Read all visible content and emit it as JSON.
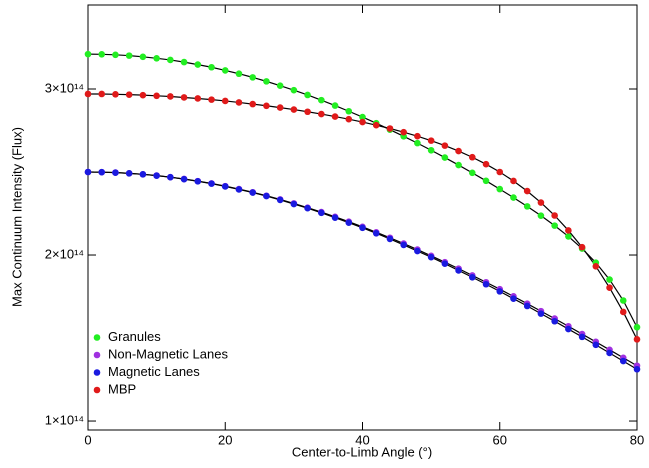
{
  "chart_data": {
    "type": "scatter",
    "xlabel": "Center-to-Limb Angle (°)",
    "ylabel": "Max Continuum Intensity (Flux)",
    "x": [
      0,
      2,
      4,
      6,
      8,
      10,
      12,
      14,
      16,
      18,
      20,
      22,
      24,
      26,
      28,
      30,
      32,
      34,
      36,
      38,
      40,
      42,
      44,
      46,
      48,
      50,
      52,
      54,
      56,
      58,
      60,
      62,
      64,
      66,
      68,
      70,
      72,
      74,
      76,
      78,
      80
    ],
    "xlim": [
      0,
      80
    ],
    "xticks": [
      0,
      20,
      40,
      60,
      80
    ],
    "ylim": [
      94600000000000.0,
      350600000000000.0
    ],
    "yticks": [
      {
        "value": 100000000000000.0,
        "label": "1×10¹⁴"
      },
      {
        "value": 200000000000000.0,
        "label": "2×10¹⁴"
      },
      {
        "value": 300000000000000.0,
        "label": "3×10¹⁴"
      }
    ],
    "fit_line_color": "#000000",
    "legend": "lower left",
    "series": [
      {
        "name": "Granules",
        "color": "#22ee22",
        "values": [
          321000000000000.0,
          320900000000000.0,
          320600000000000.0,
          320100000000000.0,
          319400000000000.0,
          318500000000000.0,
          317500000000000.0,
          316200000000000.0,
          314700000000000.0,
          313100000000000.0,
          311200000000000.0,
          309200000000000.0,
          307000000000000.0,
          304600000000000.0,
          302000000000000.0,
          299300000000000.0,
          296400000000000.0,
          293300000000000.0,
          290000000000000.0,
          286600000000000.0,
          283100000000000.0,
          279400000000000.0,
          275500000000000.0,
          271500000000000.0,
          267400000000000.0,
          263100000000000.0,
          258700000000000.0,
          254200000000000.0,
          249500000000000.0,
          244700000000000.0,
          239700000000000.0,
          234600000000000.0,
          229300000000000.0,
          223700000000000.0,
          217700000000000.0,
          211200000000000.0,
          203900000000000.0,
          195400000000000.0,
          185200000000000.0,
          172600000000000.0,
          156500000000000.0
        ]
      },
      {
        "name": "Non-Magnetic Lanes",
        "color": "#a030e0",
        "values": [
          250000000000000.0,
          249900000000000.0,
          249700000000000.0,
          249200000000000.0,
          248600000000000.0,
          247900000000000.0,
          246900000000000.0,
          245800000000000.0,
          244500000000000.0,
          243100000000000.0,
          241500000000000.0,
          239700000000000.0,
          237800000000000.0,
          235700000000000.0,
          233500000000000.0,
          231100000000000.0,
          228500000000000.0,
          225900000000000.0,
          223000000000000.0,
          220100000000000.0,
          217000000000000.0,
          213700000000000.0,
          210400000000000.0,
          206900000000000.0,
          203300000000000.0,
          199500000000000.0,
          195700000000000.0,
          191800000000000.0,
          187700000000000.0,
          183600000000000.0,
          179400000000000.0,
          175100000000000.0,
          170700000000000.0,
          166200000000000.0,
          161700000000000.0,
          157100000000000.0,
          152400000000000.0,
          147700000000000.0,
          142900000000000.0,
          138100000000000.0,
          133300000000000.0
        ]
      },
      {
        "name": "Magnetic Lanes",
        "color": "#1a1ae0",
        "values": [
          250000000000000.0,
          249900000000000.0,
          249600000000000.0,
          249200000000000.0,
          248600000000000.0,
          247800000000000.0,
          246900000000000.0,
          245700000000000.0,
          244400000000000.0,
          243000000000000.0,
          241300000000000.0,
          239500000000000.0,
          237600000000000.0,
          235500000000000.0,
          233200000000000.0,
          230700000000000.0,
          228200000000000.0,
          225400000000000.0,
          222500000000000.0,
          219500000000000.0,
          216400000000000.0,
          213100000000000.0,
          209700000000000.0,
          206100000000000.0,
          202400000000000.0,
          198700000000000.0,
          194800000000000.0,
          190700000000000.0,
          186600000000000.0,
          182400000000000.0,
          178100000000000.0,
          173700000000000.0,
          169300000000000.0,
          164700000000000.0,
          160100000000000.0,
          155400000000000.0,
          150700000000000.0,
          145900000000000.0,
          141000000000000.0,
          136100000000000.0,
          131200000000000.0
        ]
      },
      {
        "name": "MBP",
        "color": "#e01a1a",
        "values": [
          297000000000000.0,
          297000000000000.0,
          296800000000000.0,
          296600000000000.0,
          296300000000000.0,
          295900000000000.0,
          295500000000000.0,
          294900000000000.0,
          294300000000000.0,
          293600000000000.0,
          292800000000000.0,
          291900000000000.0,
          290900000000000.0,
          289900000000000.0,
          288800000000000.0,
          287600000000000.0,
          286300000000000.0,
          284900000000000.0,
          283400000000000.0,
          281800000000000.0,
          280100000000000.0,
          278200000000000.0,
          276200000000000.0,
          274000000000000.0,
          271600000000000.0,
          268900000000000.0,
          265900000000000.0,
          262600000000000.0,
          258900000000000.0,
          254700000000000.0,
          250000000000000.0,
          244600000000000.0,
          238500000000000.0,
          231600000000000.0,
          223800000000000.0,
          214800000000000.0,
          204700000000000.0,
          193200000000000.0,
          180300000000000.0,
          165700000000000.0,
          149200000000000.0
        ]
      }
    ]
  }
}
